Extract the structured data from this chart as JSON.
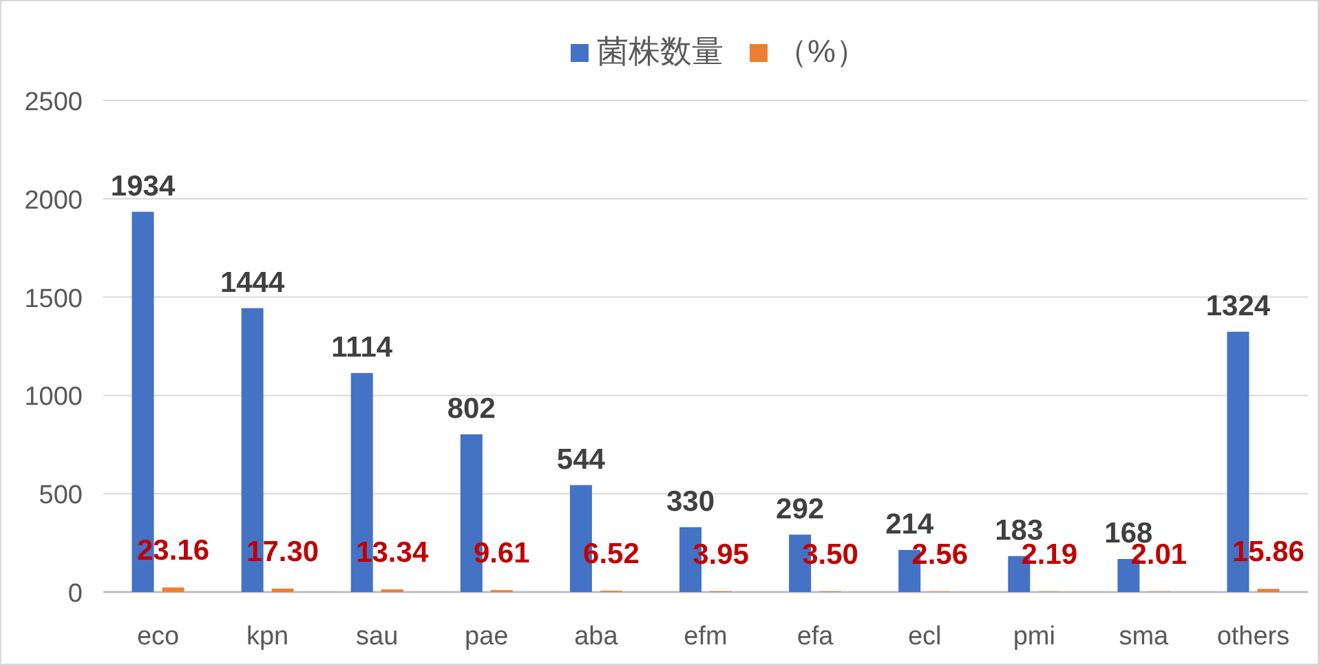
{
  "chart_data": {
    "type": "bar",
    "categories": [
      "eco",
      "kpn",
      "sau",
      "pae",
      "aba",
      "efm",
      "efa",
      "ecl",
      "pmi",
      "sma",
      "others"
    ],
    "series": [
      {
        "name": "菌株数量",
        "color": "#4472c4",
        "values": [
          1934,
          1444,
          1114,
          802,
          544,
          330,
          292,
          214,
          183,
          168,
          1324
        ],
        "value_labels": [
          "1934",
          "1444",
          "1114",
          "802",
          "544",
          "330",
          "292",
          "214",
          "183",
          "168",
          "1324"
        ]
      },
      {
        "name": "（%）",
        "color": "#ed7d31",
        "values": [
          23.16,
          17.3,
          13.34,
          9.61,
          6.52,
          3.95,
          3.5,
          2.56,
          2.19,
          2.01,
          15.86
        ],
        "value_labels": [
          "23.16",
          "17.30",
          "13.34",
          "9.61",
          "6.52",
          "3.95",
          "3.50",
          "2.56",
          "2.19",
          "2.01",
          "15.86"
        ]
      }
    ],
    "ylim": [
      0,
      2500
    ],
    "yticks": [
      0,
      500,
      1000,
      1500,
      2000,
      2500
    ],
    "grid": "y",
    "legend": "top"
  }
}
